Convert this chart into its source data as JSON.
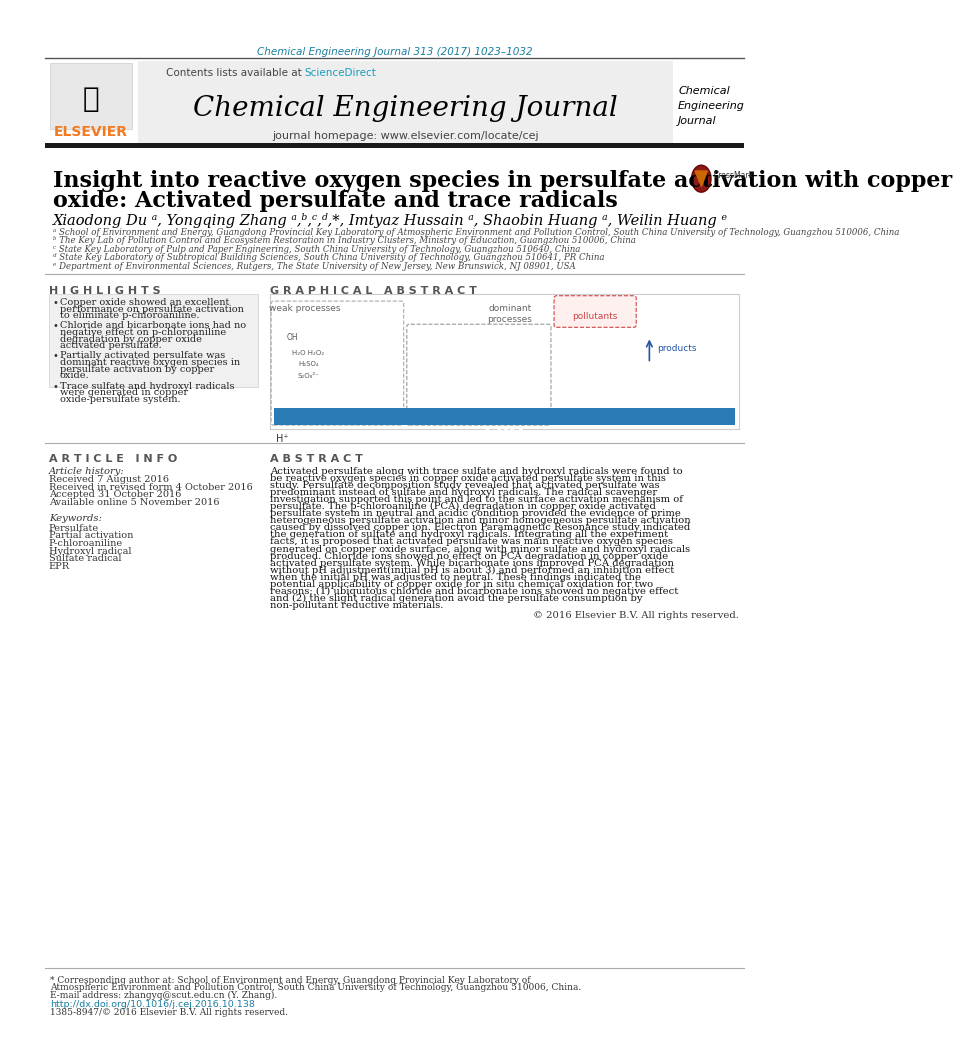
{
  "bg_color": "#ffffff",
  "journal_ref_color": "#1a7fa0",
  "journal_ref": "Chemical Engineering Journal 313 (2017) 1023–1032",
  "contents_text": "Contents lists available at ",
  "sciencedirect_text": "ScienceDirect",
  "sciencedirect_color": "#1a9bbc",
  "journal_title": "Chemical Engineering Journal",
  "journal_homepage": "journal homepage: www.elsevier.com/locate/cej",
  "journal_side_title": "Chemical\nEngineering\nJournal",
  "elsevier_color": "#f47920",
  "header_bg": "#eeeeee",
  "black_bar_color": "#1a1a1a",
  "article_title_line1": "Insight into reactive oxygen species in persulfate activation with copper",
  "article_title_line2": "oxide: Activated persulfate and trace radicals",
  "author_line": "Xiaodong Du ᵃ, Yongqing Zhang ᵃ,ᵇ,ᶜ,ᵈ,*, Imtyaz Hussain ᵃ, Shaobin Huang ᵃ, Weilin Huang ᵉ",
  "affil_a": "ᵃ School of Environment and Energy, Guangdong Provincial Key Laboratory of Atmospheric Environment and Pollution Control, South China University of Technology, Guangzhou 510006, China",
  "affil_b": "ᵇ The Key Lab of Pollution Control and Ecosystem Restoration in Industry Clusters, Ministry of Education, Guangzhou 510006, China",
  "affil_c": "ᶜ State Key Laboratory of Pulp and Paper Engineering, South China University of Technology, Guangzhou 510640, China",
  "affil_d": "ᵈ State Key Laboratory of Subtropical Building Sciences, South China University of Technology, Guangzhou 510641, PR China",
  "affil_e": "ᵉ Department of Environmental Sciences, Rutgers, The State University of New Jersey, New Brunswick, NJ 08901, USA",
  "highlights_title": "H I G H L I G H T S",
  "highlights": [
    "Copper oxide showed an excellent performance on persulfate activation to eliminate p-chloroaniline.",
    "Chloride and bicarbonate ions had no negative effect on p-chloroaniline degradation by copper oxide activated persulfate.",
    "Partially activated persulfate was dominant reactive oxygen species in persulfate activation by copper oxide.",
    "Trace sulfate and hydroxyl radicals were generated in copper oxide-persulfate system."
  ],
  "graphical_abstract_title": "G R A P H I C A L   A B S T R A C T",
  "article_info_title": "A R T I C L E   I N F O",
  "article_history_title": "Article history:",
  "received": "Received 7 August 2016",
  "revised": "Received in revised form 4 October 2016",
  "accepted": "Accepted 31 October 2016",
  "available": "Available online 5 November 2016",
  "keywords_title": "Keywords:",
  "keywords": [
    "Persulfate",
    "Partial activation",
    "P-chloroaniline",
    "Hydroxyl radical",
    "Sulfate radical",
    "EPR"
  ],
  "abstract_title": "A B S T R A C T",
  "abstract_text": "Activated persulfate along with trace sulfate and hydroxyl radicals were found to be reactive oxygen species in copper oxide activated persulfate system in this study. Persulfate decomposition study revealed that activated persulfate was predominant instead of sulfate and hydroxyl radicals. The radical scavenger investigation supported this point and led to the surface activation mechanism of persulfate. The p-chloroaniline (PCA) degradation in copper oxide activated persulfate system in neutral and acidic condition provided the evidence of prime heterogeneous persulfate activation and minor homogeneous persulfate activation caused by dissolved copper ion. Electron Paramagnetic Resonance study indicated the generation of sulfate and hydroxyl radicals. Integrating all the experiment facts, it is proposed that activated persulfate was main reactive oxygen species generated on copper oxide surface, along with minor sulfate and hydroxyl radicals produced. Chloride ions showed no effect on PCA degradation in copper oxide activated persulfate system. While bicarbonate ions improved PCA degradation without pH adjustment(initial pH is about 3) and performed an inhibition effect when the initial pH was adjusted to neutral. These findings indicated the potential applicability of copper oxide for in situ chemical oxidation for two reasons; (1) ubiquitous chloride and bicarbonate ions showed no negative effect and (2) the slight radical generation avoid the persulfate consumption by non-pollutant reductive materials.",
  "copyright": "© 2016 Elsevier B.V. All rights reserved.",
  "footnote_star": "* Corresponding author at: School of Environment and Energy, Guangdong Provincial Key Laboratory of Atmospheric Environment and Pollution Control, South China University of Technology, Guangzhou 510006, China.",
  "footnote_email": "E-mail address: zhangyq@scut.edu.cn (Y. Zhang).",
  "footnote_doi": "http://dx.doi.org/10.1016/j.cej.2016.10.138",
  "footnote_doi_color": "#1a7fa0",
  "footnote_issn": "1385-8947/© 2016 Elsevier B.V. All rights reserved.",
  "section_title_color": "#555555",
  "title_color": "#000000",
  "text_color": "#111111",
  "italic_affil_color": "#444444",
  "highlight_box_color": "#f0f0f0",
  "divider_color": "#888888"
}
